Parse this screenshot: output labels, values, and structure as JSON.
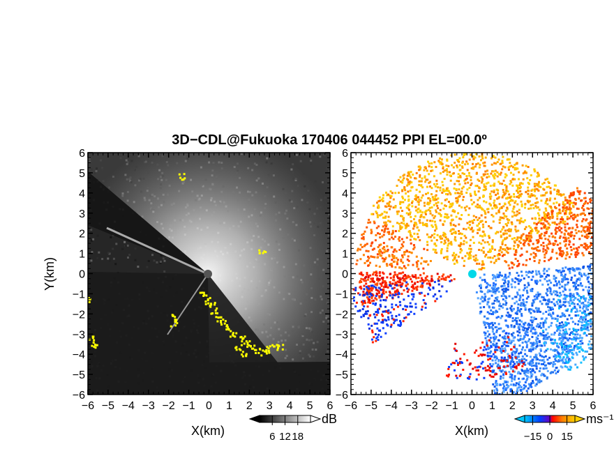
{
  "title": "3D−CDL@Fukuoka 170406 044452 PPI EL=00.0º",
  "chart_data": [
    {
      "type": "heatmap",
      "panel": "reflectivity",
      "xlabel": "X(km)",
      "ylabel": "Y(km)",
      "xlim": [
        -6,
        6
      ],
      "ylim": [
        -6,
        6
      ],
      "xticks": [
        "−6",
        "−5",
        "−4",
        "−3",
        "−2",
        "−1",
        "0",
        "1",
        "2",
        "3",
        "4",
        "5",
        "6"
      ],
      "yticks": [
        "−6",
        "−5",
        "−4",
        "−3",
        "−2",
        "−1",
        "0",
        "1",
        "2",
        "3",
        "4",
        "5",
        "6"
      ],
      "colorbar": {
        "unit": "dB",
        "ticks": [
          "6",
          "12",
          "18"
        ],
        "tick_values": [
          6,
          12,
          18
        ],
        "range": [
          0,
          24
        ],
        "colors": [
          "#000000",
          "#ffffff"
        ]
      },
      "highlight_color": "#ffff00"
    },
    {
      "type": "heatmap",
      "panel": "doppler-velocity",
      "xlabel": "X(km)",
      "xlim": [
        -6,
        6
      ],
      "ylim": [
        -6,
        6
      ],
      "xticks": [
        "−6",
        "−5",
        "−4",
        "−3",
        "−2",
        "−1",
        "0",
        "1",
        "2",
        "3",
        "4",
        "5",
        "6"
      ],
      "yticks": [
        "−6",
        "−5",
        "−4",
        "−3",
        "−2",
        "−1",
        "0",
        "1",
        "2",
        "3",
        "4",
        "5",
        "6"
      ],
      "colorbar": {
        "unit": "ms⁻¹",
        "ticks": [
          "−15",
          "0",
          "15"
        ],
        "tick_values": [
          -15,
          0,
          15
        ],
        "range": [
          -22,
          22
        ],
        "colors": [
          "#00c8ff",
          "#0040ff",
          "#ff0000",
          "#ff7f00",
          "#ffd000"
        ]
      }
    }
  ]
}
